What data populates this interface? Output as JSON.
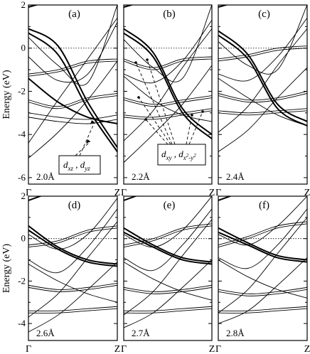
{
  "chart_data": [
    {
      "type": "line",
      "panel_label": "(a)",
      "annotation": "2.0Å",
      "ylabel": "Energy (eV)",
      "x_ticks": [
        "Γ",
        "Z"
      ],
      "ylim": [
        -6.3,
        2.0
      ],
      "y_ticks": [
        2,
        0,
        -2,
        -4,
        -6
      ],
      "fermi_level": 0,
      "orbital_label": {
        "text": "d",
        "subs": [
          "xz",
          "yz"
        ]
      },
      "bands": [
        {
          "thick": true,
          "values": [
            1.9,
            2.3,
            2.8,
            3.3
          ]
        },
        {
          "thick": true,
          "values": [
            0.9,
            0.1,
            -2.5,
            -4.6
          ]
        },
        {
          "thick": true,
          "values": [
            0.7,
            -0.3,
            -2.8,
            -4.8
          ]
        },
        {
          "thick": false,
          "values": [
            0.5,
            -0.8,
            -1.6,
            2.0
          ]
        },
        {
          "thick": false,
          "values": [
            -0.4,
            -1.5,
            -1.2,
            1.2
          ]
        },
        {
          "thick": false,
          "values": [
            -1.2,
            -1.0,
            -0.6,
            -0.5
          ]
        },
        {
          "thick": false,
          "values": [
            -1.3,
            -1.1,
            -0.7,
            -0.6
          ]
        },
        {
          "thick": true,
          "values": [
            -1.4,
            -2.5,
            -3.2,
            -3.5
          ]
        },
        {
          "thick": false,
          "values": [
            -2.4,
            -2.7,
            -2.3,
            -2.1
          ]
        },
        {
          "thick": false,
          "values": [
            -2.5,
            -2.8,
            -2.4,
            -2.2
          ]
        },
        {
          "thick": false,
          "values": [
            -3.0,
            -3.2,
            -3.3,
            -3.1
          ]
        },
        {
          "thick": false,
          "values": [
            -3.2,
            -3.4,
            -3.5,
            -3.3
          ]
        },
        {
          "thick": false,
          "values": [
            -4.4,
            -2.4,
            -0.5,
            1.4
          ]
        },
        {
          "thick": false,
          "values": [
            -5.1,
            -3.9,
            -2.4,
            -0.6
          ]
        }
      ]
    },
    {
      "type": "line",
      "panel_label": "(b)",
      "annotation": "2.2Å",
      "x_ticks": [
        "Γ",
        "Z"
      ],
      "ylim": [
        -6.3,
        2.0
      ],
      "fermi_level": 0,
      "orbital_label": {
        "text": "d",
        "subs": [
          "xy"
        ],
        "second": {
          "text": "d",
          "subs": [
            "x",
            "2",
            "-y",
            "2"
          ]
        }
      },
      "bands": [
        {
          "thick": true,
          "values": [
            1.9,
            2.3,
            2.8,
            3.3
          ]
        },
        {
          "thick": true,
          "values": [
            0.9,
            -0.2,
            -2.8,
            -4.0
          ]
        },
        {
          "thick": true,
          "values": [
            0.7,
            -0.4,
            -3.0,
            -4.2
          ]
        },
        {
          "thick": false,
          "values": [
            0.4,
            -0.9,
            -1.4,
            2.0
          ]
        },
        {
          "thick": false,
          "values": [
            -0.5,
            -0.9,
            -0.5,
            -0.4
          ]
        },
        {
          "thick": false,
          "values": [
            -0.6,
            -1.0,
            -0.6,
            -0.5
          ]
        },
        {
          "thick": false,
          "values": [
            -1.2,
            -1.6,
            -0.6,
            1.3
          ]
        },
        {
          "thick": false,
          "values": [
            -1.3,
            -2.4,
            -3.1,
            -3.4
          ]
        },
        {
          "thick": false,
          "values": [
            -2.3,
            -2.6,
            -2.4,
            -2.2
          ]
        },
        {
          "thick": false,
          "values": [
            -2.4,
            -2.7,
            -2.5,
            -2.3
          ]
        },
        {
          "thick": false,
          "values": [
            -3.1,
            -3.2,
            -3.0,
            -2.8
          ]
        },
        {
          "thick": false,
          "values": [
            -3.2,
            -3.3,
            -3.1,
            -2.9
          ]
        },
        {
          "thick": false,
          "values": [
            -4.3,
            -2.9,
            -0.9,
            0.9
          ]
        },
        {
          "thick": false,
          "values": [
            -5.3,
            -4.0,
            -2.6,
            -0.8
          ]
        }
      ]
    },
    {
      "type": "line",
      "panel_label": "(c)",
      "annotation": "2.4Å",
      "x_ticks": [
        "Γ",
        "Z"
      ],
      "ylim": [
        -6.3,
        2.0
      ],
      "fermi_level": 0,
      "bands": [
        {
          "thick": true,
          "values": [
            1.9,
            2.3,
            2.8,
            3.3
          ]
        },
        {
          "thick": true,
          "values": [
            0.8,
            -0.3,
            -2.6,
            -3.4
          ]
        },
        {
          "thick": true,
          "values": [
            0.6,
            -0.5,
            -2.8,
            -3.6
          ]
        },
        {
          "thick": false,
          "values": [
            0.3,
            -0.8,
            -1.0,
            2.0
          ]
        },
        {
          "thick": false,
          "values": [
            -0.5,
            -0.3,
            0.0,
            0.1
          ]
        },
        {
          "thick": false,
          "values": [
            -0.6,
            -0.4,
            -0.1,
            0.0
          ]
        },
        {
          "thick": false,
          "values": [
            -1.2,
            -1.5,
            -0.4,
            1.4
          ]
        },
        {
          "thick": false,
          "values": [
            -1.4,
            -2.3,
            -3.1,
            -3.6
          ]
        },
        {
          "thick": false,
          "values": [
            -2.1,
            -2.4,
            -2.3,
            -2.0
          ]
        },
        {
          "thick": false,
          "values": [
            -2.2,
            -2.5,
            -2.4,
            -2.1
          ]
        },
        {
          "thick": false,
          "values": [
            -2.9,
            -3.0,
            -2.9,
            -2.8
          ]
        },
        {
          "thick": false,
          "values": [
            -3.0,
            -3.1,
            -3.0,
            -2.9
          ]
        },
        {
          "thick": false,
          "values": [
            -3.9,
            -2.7,
            -0.8,
            0.9
          ]
        },
        {
          "thick": false,
          "values": [
            -4.8,
            -3.8,
            -2.3,
            -0.9
          ]
        }
      ]
    },
    {
      "type": "line",
      "panel_label": "(d)",
      "annotation": "2.6Å",
      "ylabel": "Energy (eV)",
      "x_ticks": [
        "Γ",
        "Z"
      ],
      "ylim": [
        -4.8,
        2.0
      ],
      "y_ticks": [
        2,
        0,
        -2,
        -4
      ],
      "fermi_level": 0,
      "bands": [
        {
          "thick": true,
          "values": [
            1.8,
            2.3,
            2.8,
            3.3
          ]
        },
        {
          "thick": true,
          "values": [
            0.6,
            -0.4,
            -1.0,
            -1.2
          ]
        },
        {
          "thick": true,
          "values": [
            0.4,
            -0.5,
            -1.1,
            -1.3
          ]
        },
        {
          "thick": false,
          "values": [
            0.2,
            -0.5,
            0.2,
            1.9
          ]
        },
        {
          "thick": false,
          "values": [
            -0.3,
            -0.1,
            0.4,
            0.6
          ]
        },
        {
          "thick": false,
          "values": [
            -0.4,
            -0.2,
            0.3,
            0.5
          ]
        },
        {
          "thick": false,
          "values": [
            -1.0,
            -1.6,
            -0.4,
            1.4
          ]
        },
        {
          "thick": false,
          "values": [
            -1.2,
            -2.0,
            -2.6,
            -3.0
          ]
        },
        {
          "thick": false,
          "values": [
            -2.2,
            -2.4,
            -2.3,
            -2.1
          ]
        },
        {
          "thick": false,
          "values": [
            -2.3,
            -2.5,
            -2.4,
            -2.2
          ]
        },
        {
          "thick": false,
          "values": [
            -3.4,
            -3.4,
            -3.3,
            -3.2
          ]
        },
        {
          "thick": false,
          "values": [
            -3.5,
            -3.5,
            -3.4,
            -3.3
          ]
        },
        {
          "thick": false,
          "values": [
            -3.7,
            -2.6,
            -0.9,
            0.8
          ]
        },
        {
          "thick": false,
          "values": [
            -4.4,
            -3.6,
            -2.4,
            -1.1
          ]
        }
      ]
    },
    {
      "type": "line",
      "panel_label": "(e)",
      "annotation": "2.7Å",
      "x_ticks": [
        "Γ",
        "Z"
      ],
      "ylim": [
        -4.8,
        2.0
      ],
      "fermi_level": 0,
      "bands": [
        {
          "thick": true,
          "values": [
            1.8,
            2.3,
            2.8,
            3.3
          ]
        },
        {
          "thick": true,
          "values": [
            0.5,
            -0.3,
            -0.9,
            -1.1
          ]
        },
        {
          "thick": true,
          "values": [
            0.3,
            -0.4,
            -1.0,
            -1.2
          ]
        },
        {
          "thick": false,
          "values": [
            0.2,
            -0.4,
            0.4,
            2.0
          ]
        },
        {
          "thick": false,
          "values": [
            -0.3,
            0.0,
            0.5,
            0.7
          ]
        },
        {
          "thick": false,
          "values": [
            -0.4,
            -0.1,
            0.4,
            0.6
          ]
        },
        {
          "thick": false,
          "values": [
            -0.9,
            -1.5,
            -0.3,
            1.4
          ]
        },
        {
          "thick": false,
          "values": [
            -1.1,
            -1.9,
            -2.5,
            -2.9
          ]
        },
        {
          "thick": false,
          "values": [
            -2.3,
            -2.5,
            -2.4,
            -2.2
          ]
        },
        {
          "thick": false,
          "values": [
            -2.4,
            -2.6,
            -2.5,
            -2.3
          ]
        },
        {
          "thick": false,
          "values": [
            -3.4,
            -3.4,
            -3.3,
            -3.2
          ]
        },
        {
          "thick": false,
          "values": [
            -3.5,
            -3.5,
            -3.4,
            -3.3
          ]
        },
        {
          "thick": false,
          "values": [
            -3.6,
            -2.5,
            -0.8,
            0.9
          ]
        },
        {
          "thick": false,
          "values": [
            -4.2,
            -3.5,
            -2.3,
            -1.0
          ]
        }
      ]
    },
    {
      "type": "line",
      "panel_label": "(f)",
      "annotation": "2.8Å",
      "x_ticks": [
        "Γ",
        "Z"
      ],
      "ylim": [
        -4.8,
        2.0
      ],
      "fermi_level": 0,
      "bands": [
        {
          "thick": true,
          "values": [
            1.8,
            2.3,
            2.8,
            3.3
          ]
        },
        {
          "thick": true,
          "values": [
            0.5,
            -0.2,
            -0.8,
            -1.0
          ]
        },
        {
          "thick": true,
          "values": [
            0.3,
            -0.3,
            -0.9,
            -1.1
          ]
        },
        {
          "thick": false,
          "values": [
            0.2,
            -0.3,
            0.6,
            2.0
          ]
        },
        {
          "thick": false,
          "values": [
            -0.3,
            0.1,
            0.6,
            0.8
          ]
        },
        {
          "thick": false,
          "values": [
            -0.4,
            0.0,
            0.5,
            0.7
          ]
        },
        {
          "thick": false,
          "values": [
            -0.9,
            -1.4,
            -0.3,
            1.4
          ]
        },
        {
          "thick": false,
          "values": [
            -1.0,
            -1.8,
            -2.4,
            -2.8
          ]
        },
        {
          "thick": false,
          "values": [
            -2.4,
            -2.6,
            -2.5,
            -2.3
          ]
        },
        {
          "thick": false,
          "values": [
            -2.5,
            -2.7,
            -2.6,
            -2.4
          ]
        },
        {
          "thick": false,
          "values": [
            -3.4,
            -3.4,
            -3.3,
            -3.2
          ]
        },
        {
          "thick": false,
          "values": [
            -3.5,
            -3.5,
            -3.4,
            -3.3
          ]
        },
        {
          "thick": false,
          "values": [
            -3.5,
            -2.4,
            -0.7,
            1.0
          ]
        },
        {
          "thick": false,
          "values": [
            -4.0,
            -3.4,
            -2.2,
            -0.9
          ]
        }
      ]
    }
  ]
}
